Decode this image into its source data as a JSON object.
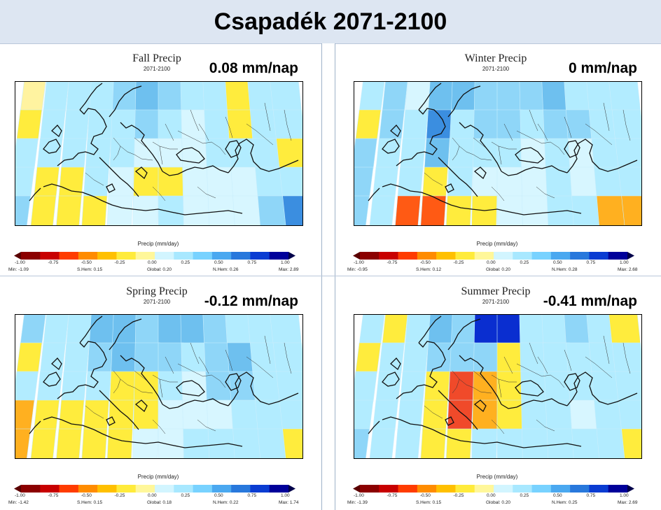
{
  "title": "Csapadék 2071-2100",
  "colorbar": {
    "title": "Precip (mm/day)",
    "ticks": [
      "-1.00",
      "-0.75",
      "-0.50",
      "-0.25",
      "0.00",
      "0.25",
      "0.50",
      "0.75",
      "1.00"
    ],
    "colors": [
      "#8b0000",
      "#c80000",
      "#ff3c00",
      "#ff8c00",
      "#ffc000",
      "#ffeb3b",
      "#fff79a",
      "#d2f5ff",
      "#a8e8ff",
      "#78d2ff",
      "#4aa8f0",
      "#2878dc",
      "#0a3cd2",
      "#00009a"
    ]
  },
  "palette": {
    "yellow": "#ffec3d",
    "light_yellow": "#fff3a0",
    "orange": "#ffb020",
    "red_orange": "#ff5a14",
    "deep_red": "#f04a2a",
    "pale_cyan": "#d7f6ff",
    "light_cyan": "#b2ecff",
    "light_blue": "#8fd6f8",
    "mid_blue": "#6ec0ef",
    "blue": "#3b8ee0",
    "dark_blue": "#0a2ed0"
  },
  "panels": [
    {
      "title": "Fall Precip",
      "period": "2071-2100",
      "change": "0.08 mm/nap",
      "stats": {
        "min": "Min: -1.09",
        "shem": "S.Hem: 0.15",
        "global": "Global: 0.20",
        "nhem": "N.Hem: 0.26",
        "max": "Max: 2.89"
      },
      "grid": [
        [
          "ly",
          "lc",
          "lc",
          "lc",
          "lb",
          "mb",
          "lb",
          "lc",
          "lc",
          "y",
          "lc",
          "lc"
        ],
        [
          "y",
          "lc",
          "lc",
          "lc",
          "lc",
          "lb",
          "lc",
          "pc",
          "lc",
          "y",
          "lc",
          "lc"
        ],
        [
          "lc",
          "lc",
          "lc",
          "lc",
          "lc",
          "pc",
          "pc",
          "pc",
          "lc",
          "lc",
          "lc",
          "y"
        ],
        [
          "lc",
          "y",
          "y",
          "lc",
          "pc",
          "y",
          "y",
          "pc",
          "pc",
          "pc",
          "lc",
          "lc"
        ],
        [
          "lb",
          "y",
          "y",
          "y",
          "pc",
          "pc",
          "lc",
          "pc",
          "pc",
          "pc",
          "lb",
          "b"
        ]
      ]
    },
    {
      "title": "Winter Precip",
      "period": "2071-2100",
      "change": "0 mm/nap",
      "stats": {
        "min": "Min: -0.95",
        "shem": "S.Hem: 0.12",
        "global": "Global: 0.20",
        "nhem": "N.Hem: 0.28",
        "max": "Max: 2.68"
      },
      "grid": [
        [
          "lc",
          "lb",
          "pc",
          "mb",
          "mb",
          "lb",
          "lb",
          "lb",
          "mb",
          "lc",
          "lc",
          "lc"
        ],
        [
          "y",
          "lb",
          "lc",
          "b",
          "lc",
          "lb",
          "lb",
          "lc",
          "lb",
          "lb",
          "lc",
          "lc"
        ],
        [
          "lb",
          "lc",
          "lc",
          "mb",
          "lc",
          "lc",
          "lc",
          "pc",
          "lc",
          "pc",
          "lc",
          "lc"
        ],
        [
          "lb",
          "lc",
          "lc",
          "y",
          "lc",
          "pc",
          "pc",
          "pc",
          "lc",
          "pc",
          "lc",
          "lc"
        ],
        [
          "lb",
          "lc",
          "ro",
          "ro",
          "y",
          "y",
          "pc",
          "pc",
          "lc",
          "lc",
          "o",
          "o"
        ]
      ]
    },
    {
      "title": "Spring Precip",
      "period": "2071-2100",
      "change": "-0.12 mm/nap",
      "stats": {
        "min": "Min: -1.42",
        "shem": "S.Hem: 0.15",
        "global": "Global: 0.18",
        "nhem": "N.Hem: 0.22",
        "max": "Max: 1.74"
      },
      "grid": [
        [
          "lb",
          "lc",
          "lc",
          "mb",
          "mb",
          "lb",
          "mb",
          "mb",
          "lb",
          "lc",
          "lc",
          "lc"
        ],
        [
          "y",
          "lc",
          "lc",
          "lb",
          "mb",
          "lb",
          "lb",
          "lc",
          "lb",
          "mb",
          "lc",
          "lc"
        ],
        [
          "lc",
          "lc",
          "lc",
          "lc",
          "y",
          "y",
          "lc",
          "pc",
          "lb",
          "lb",
          "lc",
          "lc"
        ],
        [
          "o",
          "y",
          "y",
          "y",
          "y",
          "y",
          "pc",
          "pc",
          "pc",
          "lc",
          "lc",
          "lc"
        ],
        [
          "o",
          "y",
          "y",
          "y",
          "y",
          "pc",
          "pc",
          "lc",
          "lc",
          "lc",
          "lc",
          "y"
        ]
      ]
    },
    {
      "title": "Summer Precip",
      "period": "2071-2100",
      "change": "-0.41 mm/nap",
      "stats": {
        "min": "Min: -1.39",
        "shem": "S.Hem: 0.15",
        "global": "Global: 0.20",
        "nhem": "N.Hem: 0.25",
        "max": "Max: 2.69"
      },
      "grid": [
        [
          "lc",
          "y",
          "lc",
          "mb",
          "lb",
          "db",
          "db",
          "lc",
          "lc",
          "lb",
          "lc",
          "y"
        ],
        [
          "y",
          "lc",
          "lc",
          "lb",
          "lb",
          "lb",
          "y",
          "lc",
          "lc",
          "lc",
          "lc",
          "lc"
        ],
        [
          "lc",
          "lc",
          "lc",
          "y",
          "dr",
          "o",
          "y",
          "lc",
          "lc",
          "lc",
          "lc",
          "lc"
        ],
        [
          "lc",
          "lc",
          "lc",
          "y",
          "dr",
          "o",
          "y",
          "lc",
          "lc",
          "pc",
          "lc",
          "lc"
        ],
        [
          "lb",
          "lc",
          "lc",
          "y",
          "y",
          "lc",
          "lc",
          "lc",
          "lc",
          "lc",
          "lc",
          "y"
        ]
      ]
    }
  ]
}
